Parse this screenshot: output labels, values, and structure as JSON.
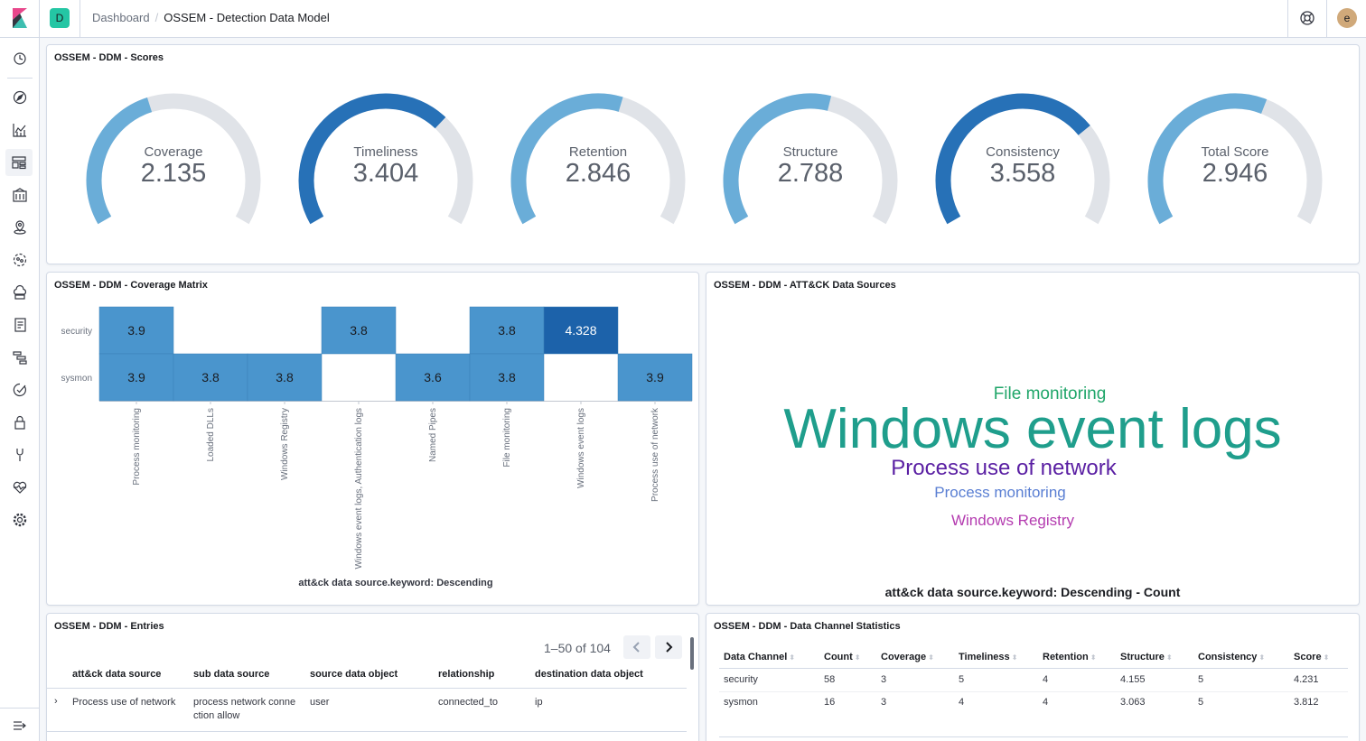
{
  "app": {
    "space_initial": "D",
    "avatar_initial": "e"
  },
  "breadcrumbs": {
    "parent": "Dashboard",
    "separator": "/",
    "current": "OSSEM - Detection Data Model"
  },
  "colors": {
    "gauge_light": "#6aadd8",
    "gauge_dark": "#2771b7",
    "gauge_track": "#e0e3e8",
    "heat_light": "#4a95cd",
    "heat_dark": "#1c62aa"
  },
  "side_nav": [
    {
      "name": "recently-viewed-icon",
      "icon": "clock"
    },
    {
      "name": "discover-icon",
      "icon": "compass"
    },
    {
      "name": "visualize-icon",
      "icon": "chart"
    },
    {
      "name": "dashboard-icon",
      "icon": "dashboard"
    },
    {
      "name": "canvas-icon",
      "icon": "canvas"
    },
    {
      "name": "maps-icon",
      "icon": "map"
    },
    {
      "name": "ml-icon",
      "icon": "ml"
    },
    {
      "name": "infrastructure-icon",
      "icon": "cloud"
    },
    {
      "name": "logs-icon",
      "icon": "logs"
    },
    {
      "name": "apm-icon",
      "icon": "apm"
    },
    {
      "name": "uptime-icon",
      "icon": "uptime"
    },
    {
      "name": "siem-icon",
      "icon": "lock"
    },
    {
      "name": "dev-tools-icon",
      "icon": "wrench"
    },
    {
      "name": "monitoring-icon",
      "icon": "heart"
    },
    {
      "name": "management-icon",
      "icon": "gear"
    }
  ],
  "scores_panel": {
    "title": "OSSEM - DDM - Scores",
    "max": 5,
    "gauges": [
      {
        "label": "Coverage",
        "value": "2.135",
        "numeric": 2.135,
        "tone": "light"
      },
      {
        "label": "Timeliness",
        "value": "3.404",
        "numeric": 3.404,
        "tone": "dark"
      },
      {
        "label": "Retention",
        "value": "2.846",
        "numeric": 2.846,
        "tone": "light"
      },
      {
        "label": "Structure",
        "value": "2.788",
        "numeric": 2.788,
        "tone": "light"
      },
      {
        "label": "Consistency",
        "value": "3.558",
        "numeric": 3.558,
        "tone": "dark"
      },
      {
        "label": "Total Score",
        "value": "2.946",
        "numeric": 2.946,
        "tone": "light"
      }
    ]
  },
  "coverage_panel": {
    "title": "OSSEM - DDM - Coverage Matrix",
    "chart_data": {
      "type": "heatmap",
      "rows": [
        "security",
        "sysmon"
      ],
      "columns": [
        "Process monitoring",
        "Loaded DLLs",
        "Windows Registry",
        "Windows event logs, Authentication logs",
        "Named Pipes",
        "File monitoring",
        "Windows event logs",
        "Process use of network"
      ],
      "values": [
        [
          3.9,
          null,
          null,
          3.8,
          null,
          3.8,
          4.328,
          null
        ],
        [
          3.9,
          3.8,
          3.8,
          null,
          3.6,
          3.8,
          null,
          3.9
        ]
      ],
      "labels": [
        [
          "3.9",
          "",
          "",
          "3.8",
          "",
          "3.8",
          "4.328",
          ""
        ],
        [
          "3.9",
          "3.8",
          "3.8",
          "",
          "3.6",
          "3.8",
          "",
          "3.9"
        ]
      ],
      "xlabel": "att&ck data source.keyword: Descending"
    }
  },
  "datasources_panel": {
    "title": "OSSEM - DDM - ATT&CK Data Sources",
    "words": [
      {
        "text": "File monitoring",
        "color": "#20a66a"
      },
      {
        "text": "Windows event logs",
        "color": "#1f9e8c"
      },
      {
        "text": "Process use of network",
        "color": "#5a1fa3"
      },
      {
        "text": "Process monitoring",
        "color": "#5a7fd3"
      },
      {
        "text": "Windows Registry",
        "color": "#b43cb0"
      }
    ],
    "caption": "att&ck data source.keyword: Descending - Count"
  },
  "entries_panel": {
    "title": "OSSEM - DDM - Entries",
    "pagination": "1–50 of 104",
    "columns": [
      "att&ck data source",
      "sub data source",
      "source data object",
      "relationship",
      "destination data object"
    ],
    "rows": [
      [
        "Process use of network",
        "process network connection allow",
        "user",
        "connected_to",
        "ip"
      ]
    ]
  },
  "stats_panel": {
    "title": "OSSEM - DDM - Data Channel Statistics",
    "columns": [
      "Data Channel",
      "Count",
      "Coverage",
      "Timeliness",
      "Retention",
      "Structure",
      "Consistency",
      "Score"
    ],
    "rows": [
      [
        "security",
        "58",
        "3",
        "5",
        "4",
        "4.155",
        "5",
        "4.231"
      ],
      [
        "sysmon",
        "16",
        "3",
        "4",
        "4",
        "3.063",
        "5",
        "3.812"
      ]
    ]
  }
}
